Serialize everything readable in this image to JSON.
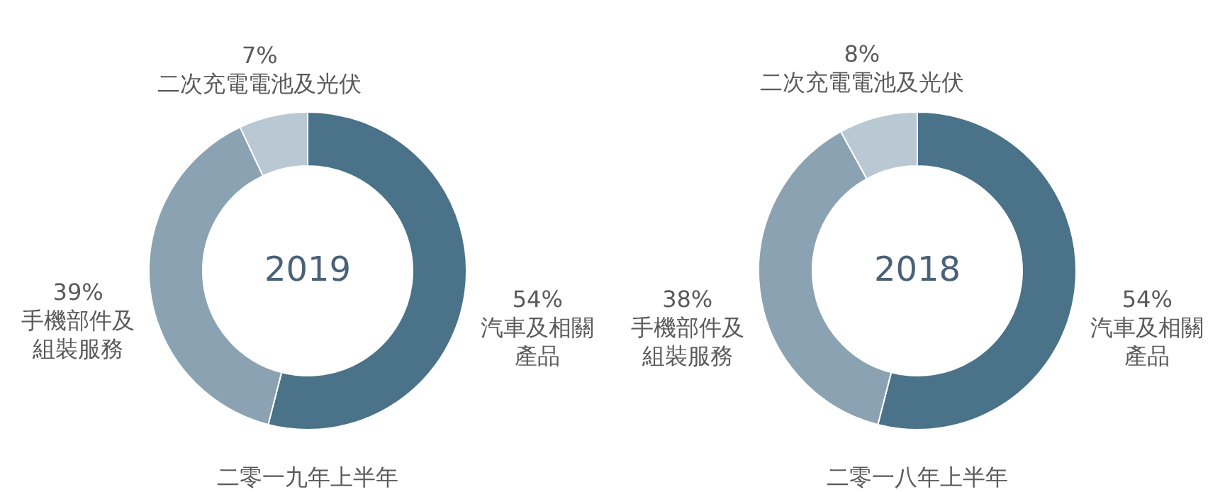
{
  "chart_data": [
    {
      "type": "donut",
      "title": "二零一九年上半年",
      "annotations": [
        "2019"
      ],
      "categories": [
        "汽車及相關產品",
        "手機部件及組裝服務",
        "二次充電電池及光伏"
      ],
      "values": [
        54,
        39,
        7
      ],
      "value_labels": [
        "54%",
        "39%",
        "7%"
      ],
      "colors": [
        "#4a7289",
        "#8aa2b2",
        "#b9c8d3"
      ]
    },
    {
      "type": "donut",
      "title": "二零一八年上半年",
      "annotations": [
        "2018"
      ],
      "categories": [
        "汽車及相關產品",
        "手機部件及組裝服務",
        "二次充電電池及光伏"
      ],
      "values": [
        54,
        38,
        8
      ],
      "value_labels": [
        "54%",
        "38%",
        "8%"
      ],
      "colors": [
        "#4a7289",
        "#8aa2b2",
        "#b9c8d3"
      ]
    }
  ]
}
